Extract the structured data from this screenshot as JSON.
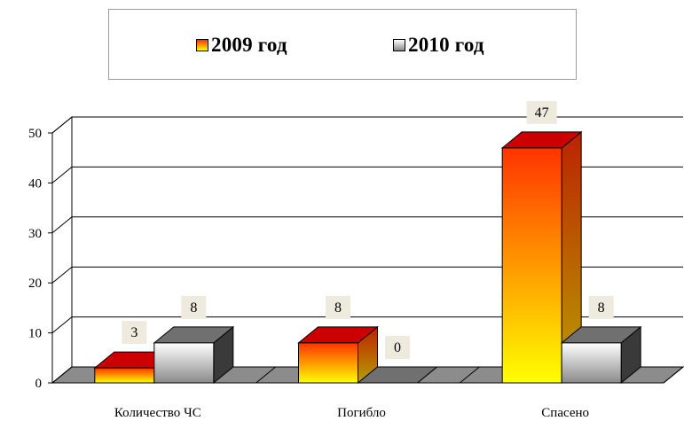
{
  "chart_data": {
    "type": "bar",
    "categories": [
      "Количество ЧС",
      "Погибло",
      "Спасено"
    ],
    "series": [
      {
        "name": "2009 год",
        "values": [
          3,
          8,
          47
        ]
      },
      {
        "name": "2010 год",
        "values": [
          8,
          0,
          8
        ]
      }
    ],
    "data_labels": [
      [
        "3",
        "8",
        "47"
      ],
      [
        "8",
        "0",
        "8"
      ]
    ],
    "y_ticks": [
      "0",
      "10",
      "20",
      "30",
      "40",
      "50"
    ],
    "ylim": [
      0,
      50
    ],
    "grid": true,
    "legend_position": "top",
    "style": "3d-clustered-column",
    "colors": {
      "series_2009_front_bottom": "#ffff00",
      "series_2009_front_top": "#ff3300",
      "series_2009_top": "#cc0000",
      "series_2009_side": "#b8a000",
      "series_2010_front_top": "#ffffff",
      "series_2010_front_bottom": "#8a8a8a",
      "series_2010_top": "#707070",
      "series_2010_side": "#3a3a3a",
      "floor": "#8c8c8c",
      "data_label_bg": "#eeeade"
    }
  }
}
